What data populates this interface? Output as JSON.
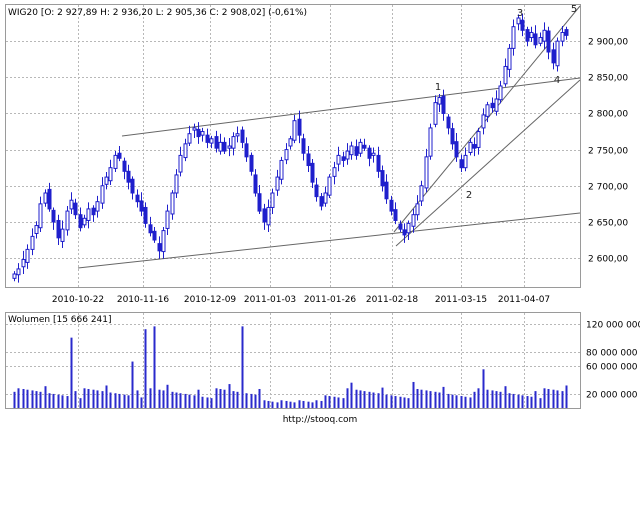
{
  "price_panel": {
    "title": "WIG20 [O: 2 927,89  H: 2 936,20  L: 2 905,36  C: 2 908,02] (-0,61%)",
    "x_tick_labels": [
      "2010-10-22",
      "2010-11-16",
      "2010-12-09",
      "2011-01-03",
      "2011-01-26",
      "2011-02-18",
      "2011-03-15",
      "2011-04-07"
    ],
    "y_tick_labels": [
      "2 600,00",
      "2 650,00",
      "2 700,00",
      "2 750,00",
      "2 800,00",
      "2 850,00",
      "2 900,00"
    ],
    "wave_labels": [
      "1",
      "2",
      "3",
      "4",
      "5"
    ]
  },
  "volume_panel": {
    "title": "Wolumen [15 666 241]",
    "y_tick_labels": [
      "20 000 000",
      "60 000 000",
      "80 000 000",
      "120 000 000"
    ]
  },
  "footer": {
    "source": "http://stooq.com"
  },
  "colors": {
    "candle": "#1f1fcc",
    "volume": "#2a2acc",
    "line": "#666666",
    "grid": "#b8b8b8"
  },
  "chart_data": [
    {
      "type": "candlestick",
      "title": "WIG20 [O: 2 927,89  H: 2 936,20  L: 2 905,36  C: 2 908,02] (-0,61%)",
      "x_dates": [
        "2010-10-22",
        "2010-11-16",
        "2010-12-09",
        "2011-01-03",
        "2011-01-26",
        "2011-02-18",
        "2011-03-15",
        "2011-04-07"
      ],
      "ylim": [
        2560,
        2950
      ],
      "y_ticks": [
        2600,
        2650,
        2700,
        2750,
        2800,
        2850,
        2900
      ],
      "grid": true,
      "closes": [
        2578,
        2585,
        2598,
        2612,
        2630,
        2645,
        2675,
        2690,
        2668,
        2650,
        2628,
        2640,
        2665,
        2680,
        2660,
        2642,
        2655,
        2668,
        2660,
        2678,
        2700,
        2712,
        2725,
        2742,
        2738,
        2720,
        2705,
        2690,
        2678,
        2665,
        2648,
        2635,
        2625,
        2610,
        2638,
        2665,
        2690,
        2715,
        2742,
        2758,
        2772,
        2780,
        2768,
        2775,
        2760,
        2765,
        2752,
        2760,
        2748,
        2755,
        2768,
        2772,
        2760,
        2740,
        2720,
        2690,
        2665,
        2650,
        2670,
        2690,
        2712,
        2735,
        2750,
        2765,
        2790,
        2770,
        2745,
        2728,
        2705,
        2685,
        2672,
        2690,
        2712,
        2725,
        2742,
        2735,
        2748,
        2755,
        2742,
        2760,
        2752,
        2738,
        2745,
        2720,
        2700,
        2682,
        2665,
        2652,
        2640,
        2632,
        2648,
        2660,
        2675,
        2700,
        2740,
        2780,
        2815,
        2822,
        2800,
        2780,
        2758,
        2740,
        2725,
        2742,
        2760,
        2752,
        2775,
        2798,
        2812,
        2808,
        2820,
        2838,
        2865,
        2890,
        2920,
        2932,
        2915,
        2900,
        2912,
        2895,
        2905,
        2915,
        2885,
        2870,
        2900,
        2912,
        2908
      ],
      "series": [
        {
          "name": "Wolumen [15 666 241]",
          "type": "bar",
          "ylim": [
            0,
            135000000
          ],
          "y_ticks": [
            20000000,
            60000000,
            80000000,
            120000000
          ]
        }
      ],
      "annotations": [
        "1",
        "2",
        "3",
        "4",
        "5"
      ]
    }
  ]
}
